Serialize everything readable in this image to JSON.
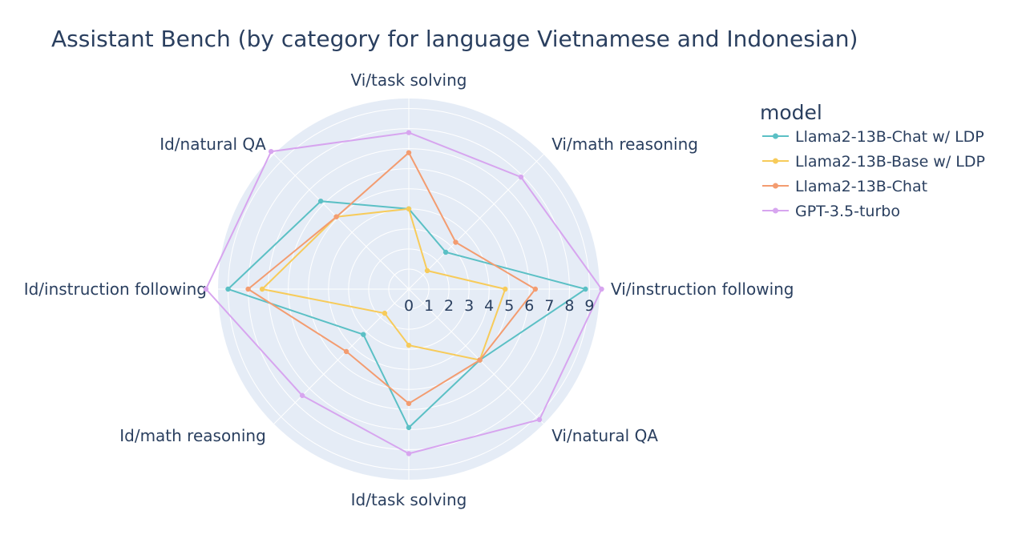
{
  "chart_data": {
    "type": "radar",
    "title": "Assistant Bench (by category for language Vietnamese and Indonesian)",
    "categories": [
      "Vi/task solving",
      "Vi/math reasoning",
      "Vi/instruction following",
      "Vi/natural QA",
      "Id/task solving",
      "Id/math reasoning",
      "Id/instruction following",
      "Id/natural QA"
    ],
    "radial_range": [
      0,
      9.5
    ],
    "radial_ticks": [
      0,
      1,
      2,
      3,
      4,
      5,
      6,
      7,
      8,
      9
    ],
    "grid": true,
    "legend": {
      "title": "model",
      "position": "top-right"
    },
    "series": [
      {
        "name": "Llama2-13B-Chat w/ LDP",
        "color": "#5bc0c5",
        "values": [
          4.0,
          2.6,
          8.8,
          5.0,
          6.9,
          3.2,
          9.0,
          6.2
        ]
      },
      {
        "name": "Llama2-13B-Base w/ LDP",
        "color": "#f7cb5a",
        "values": [
          4.0,
          1.3,
          4.8,
          5.0,
          2.8,
          1.7,
          7.3,
          5.1
        ]
      },
      {
        "name": "Llama2-13B-Chat",
        "color": "#f39c70",
        "values": [
          6.8,
          3.3,
          6.3,
          5.0,
          5.7,
          4.4,
          8.0,
          5.1
        ]
      },
      {
        "name": "GPT-3.5-turbo",
        "color": "#d7a5ef",
        "values": [
          7.8,
          7.9,
          9.6,
          9.2,
          8.2,
          7.5,
          10.1,
          9.7
        ]
      }
    ]
  }
}
